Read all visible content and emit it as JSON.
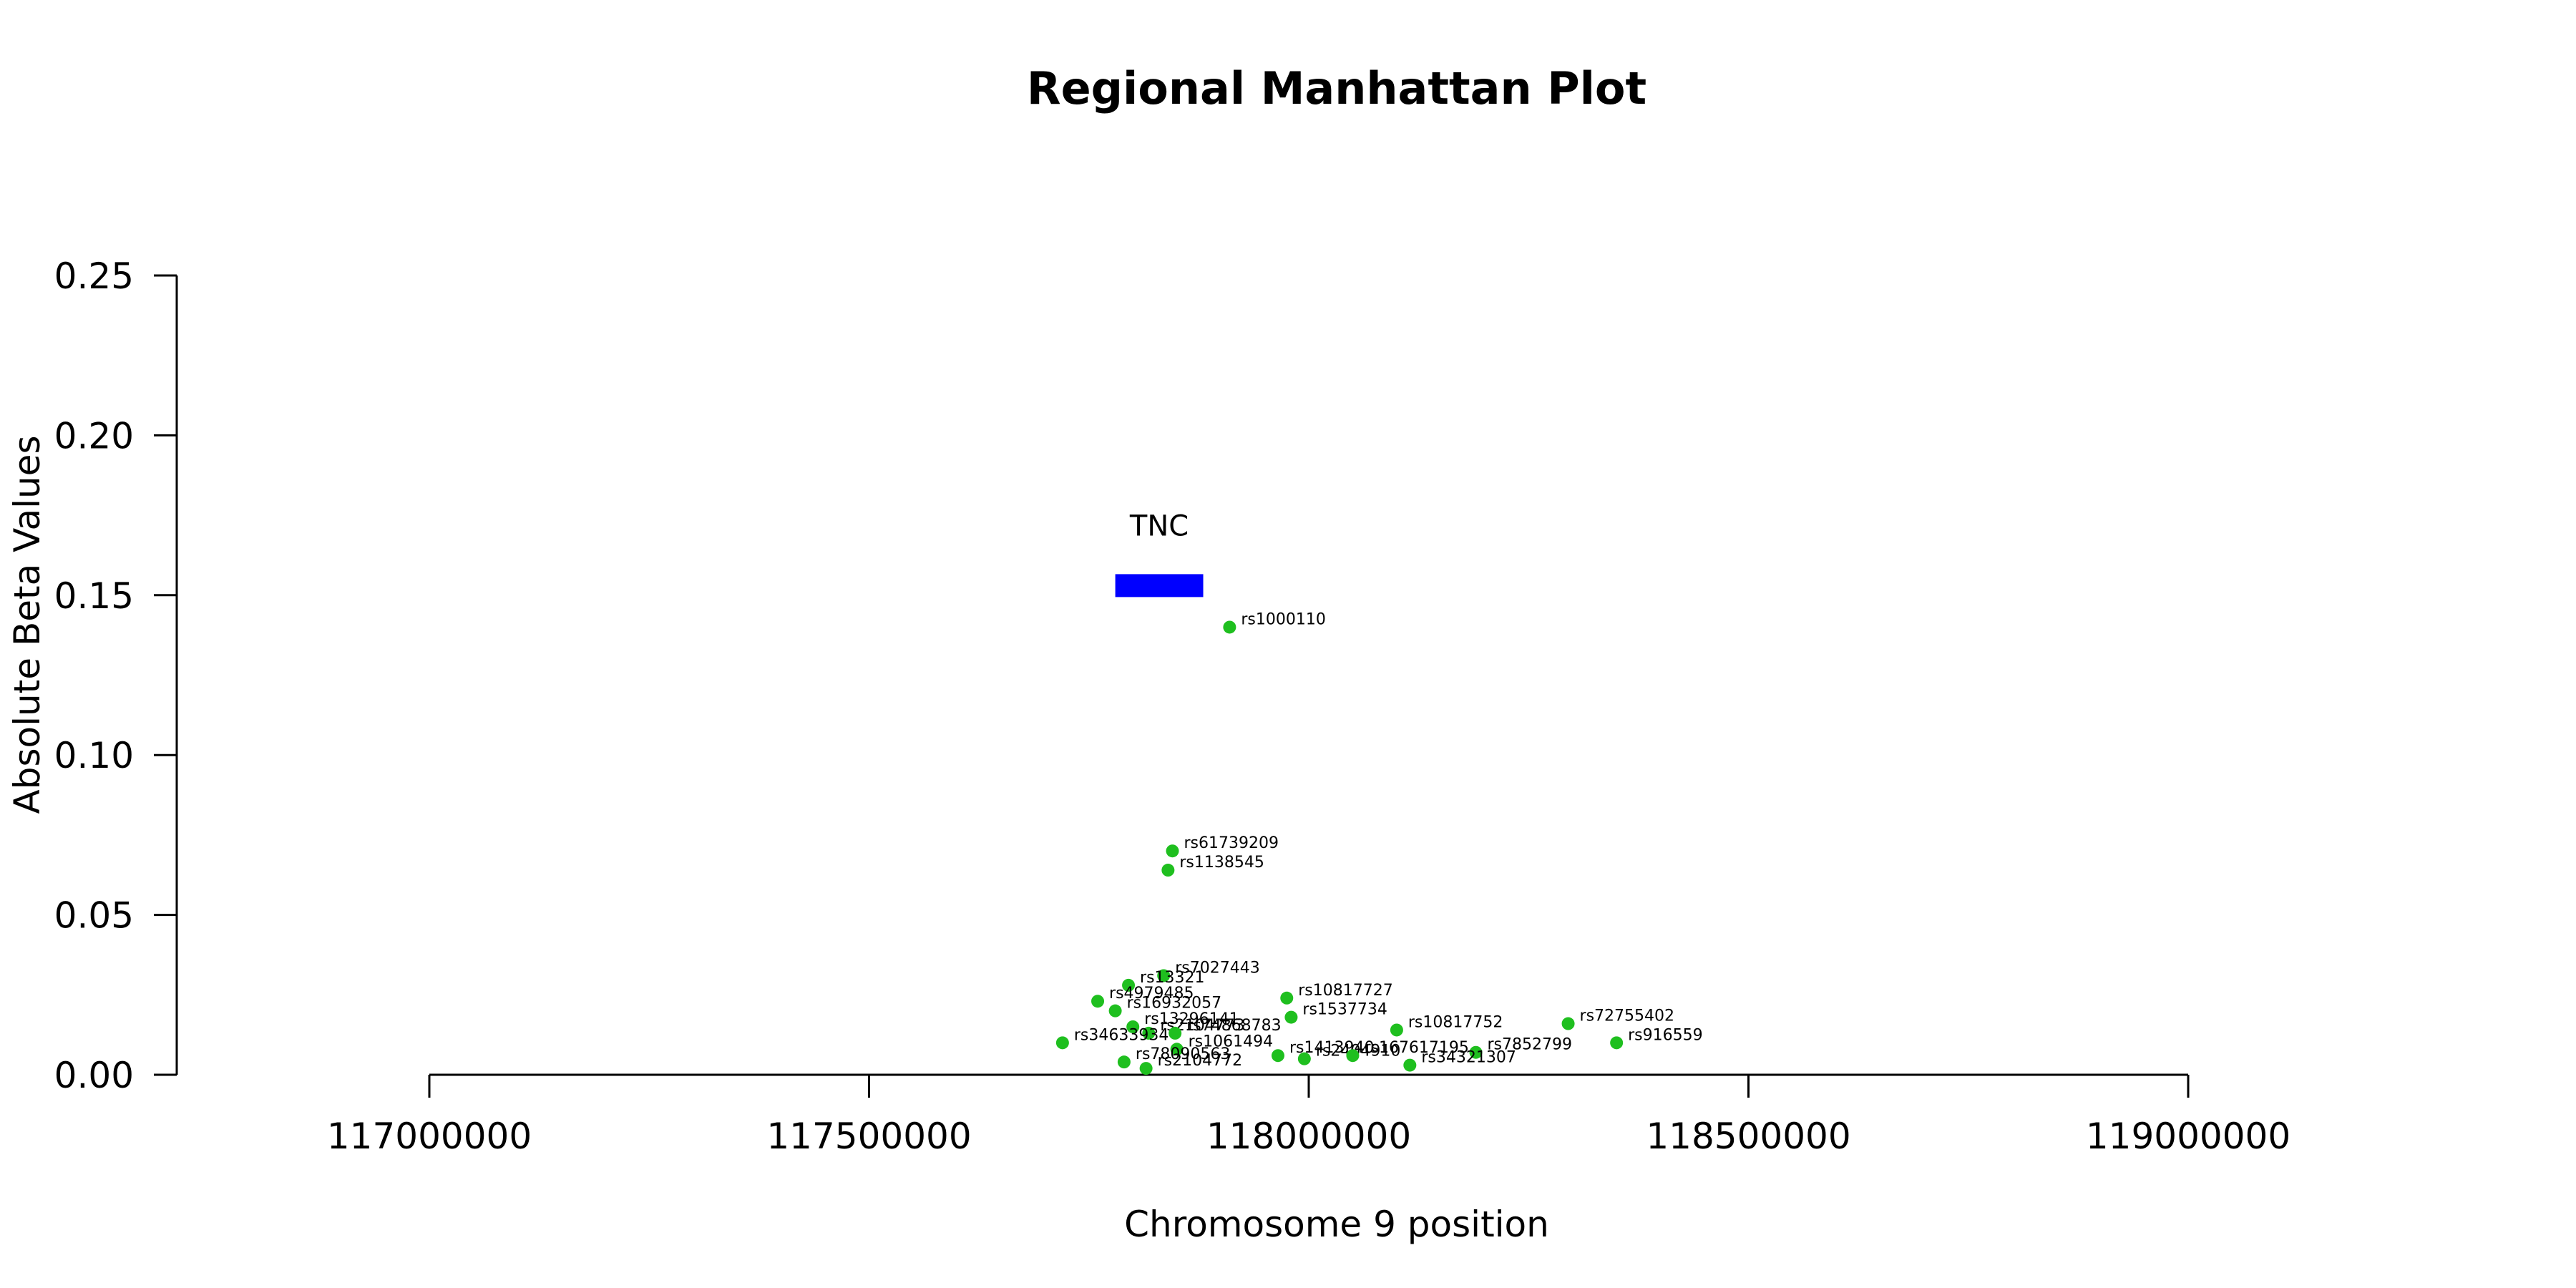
{
  "chart_data": {
    "type": "scatter",
    "title": "Regional Manhattan Plot",
    "xlabel": "Chromosome 9 position",
    "ylabel": "Absolute Beta Values",
    "xlim": [
      117000000,
      119000000
    ],
    "ylim": [
      0,
      0.25
    ],
    "xticks": [
      "117000000",
      "117500000",
      "118000000",
      "118500000",
      "119000000"
    ],
    "yticks": [
      "0.00",
      "0.05",
      "0.10",
      "0.15",
      "0.20",
      "0.25"
    ],
    "point_color": "#1fbf1f",
    "gene_color": "#0000ff",
    "grid": false,
    "genes": [
      {
        "name": "TNC",
        "start": 117780000,
        "end": 117880000,
        "y": 0.153
      }
    ],
    "points": [
      {
        "label": "rs1000110",
        "x": 117910000,
        "y": 0.14
      },
      {
        "label": "rs61739209",
        "x": 117845000,
        "y": 0.07
      },
      {
        "label": "rs1138545",
        "x": 117840000,
        "y": 0.064
      },
      {
        "label": "rs7027443",
        "x": 117835000,
        "y": 0.031
      },
      {
        "label": "rs13321",
        "x": 117795000,
        "y": 0.028
      },
      {
        "label": "rs4979485",
        "x": 117760000,
        "y": 0.023
      },
      {
        "label": "rs10817727",
        "x": 117975000,
        "y": 0.024
      },
      {
        "label": "rs16932057",
        "x": 117780000,
        "y": 0.02
      },
      {
        "label": "rs1537734",
        "x": 117980000,
        "y": 0.018
      },
      {
        "label": "rs10817752",
        "x": 118100000,
        "y": 0.014
      },
      {
        "label": "rs72755402",
        "x": 118295000,
        "y": 0.016
      },
      {
        "label": "rs13296141",
        "x": 117800000,
        "y": 0.015
      },
      {
        "label": "rs2104773",
        "x": 117818000,
        "y": 0.013
      },
      {
        "label": "rs74868783",
        "x": 117848000,
        "y": 0.013
      },
      {
        "label": "rs34633934",
        "x": 117720000,
        "y": 0.01
      },
      {
        "label": "rs916559",
        "x": 118350000,
        "y": 0.01
      },
      {
        "label": "rs1061494",
        "x": 117850000,
        "y": 0.008
      },
      {
        "label": "rs1413940",
        "x": 117965000,
        "y": 0.006
      },
      {
        "label": "rs2404910",
        "x": 117995000,
        "y": 0.005
      },
      {
        "label": "rs167617195",
        "x": 118050000,
        "y": 0.006
      },
      {
        "label": "rs7852799",
        "x": 118190000,
        "y": 0.007
      },
      {
        "label": "rs34321307",
        "x": 118115000,
        "y": 0.003
      },
      {
        "label": "rs78090563",
        "x": 117790000,
        "y": 0.004
      },
      {
        "label": "rs2104772",
        "x": 117815000,
        "y": 0.002
      }
    ]
  }
}
